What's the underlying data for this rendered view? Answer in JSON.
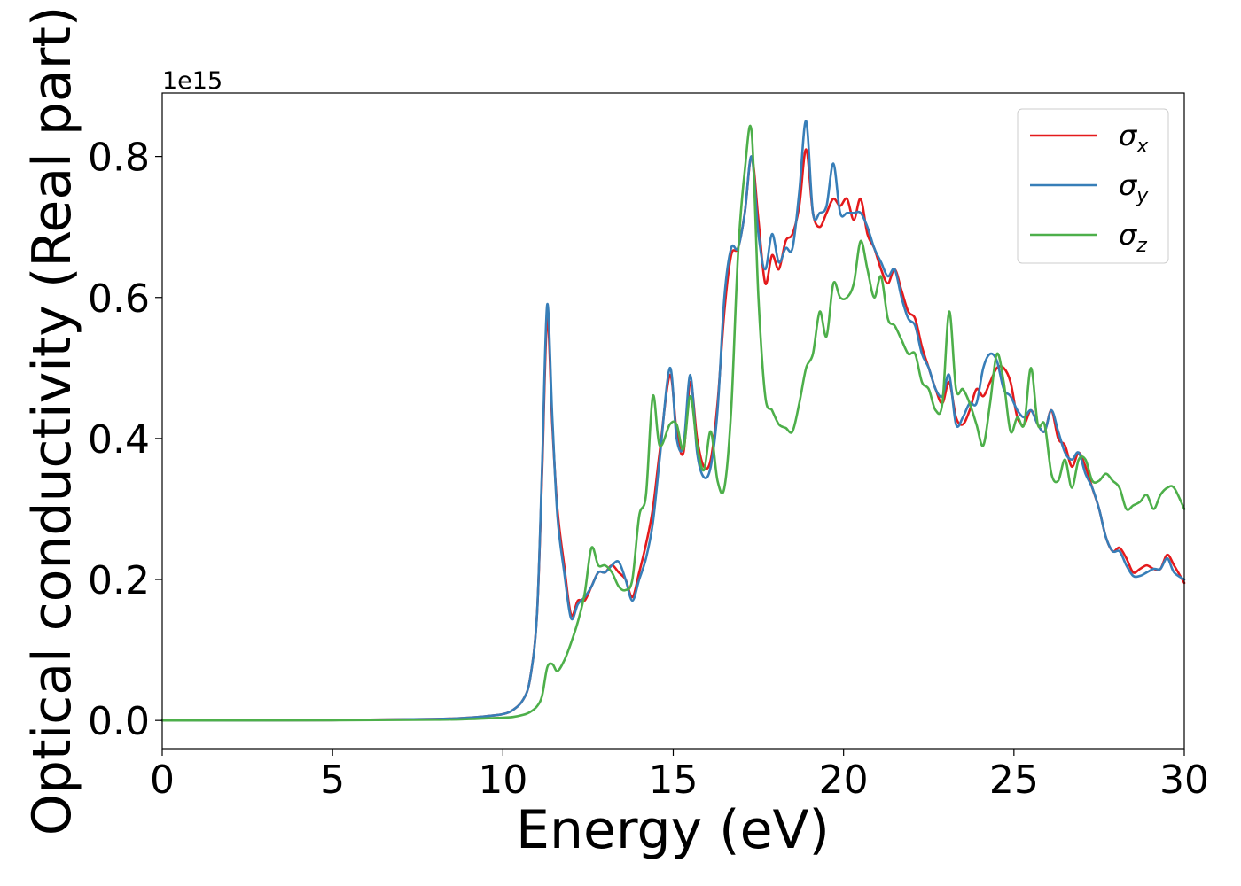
{
  "chart_data": {
    "type": "line",
    "xlabel": "Energy (eV)",
    "ylabel": "Optical conductivity (Real part)",
    "y_offset_label": "1e15",
    "xlim": [
      0,
      30
    ],
    "ylim": [
      -0.04,
      0.89
    ],
    "xticks": [
      0,
      5,
      10,
      15,
      20,
      25,
      30
    ],
    "yticks": [
      0.0,
      0.2,
      0.4,
      0.6,
      0.8
    ],
    "xtick_labels": [
      "0",
      "5",
      "10",
      "15",
      "20",
      "25",
      "30"
    ],
    "ytick_labels": [
      "0.0",
      "0.2",
      "0.4",
      "0.6",
      "0.8"
    ],
    "grid": false,
    "legend_position": "top-right",
    "series": [
      {
        "name": "σx",
        "symbol": "σ",
        "subscript": "x",
        "color": "#e41a1c",
        "x": [
          0,
          5,
          8,
          9,
          9.5,
          10,
          10.3,
          10.6,
          10.8,
          11.0,
          11.15,
          11.3,
          11.45,
          11.6,
          11.8,
          12.0,
          12.2,
          12.4,
          12.6,
          12.8,
          13.0,
          13.2,
          13.4,
          13.6,
          13.8,
          14.0,
          14.2,
          14.4,
          14.6,
          14.9,
          15.1,
          15.3,
          15.5,
          15.7,
          15.9,
          16.1,
          16.3,
          16.5,
          16.7,
          16.9,
          17.1,
          17.3,
          17.5,
          17.7,
          17.9,
          18.1,
          18.3,
          18.5,
          18.7,
          18.9,
          19.1,
          19.3,
          19.5,
          19.7,
          19.9,
          20.1,
          20.3,
          20.5,
          20.7,
          20.9,
          21.1,
          21.3,
          21.5,
          21.7,
          21.9,
          22.1,
          22.3,
          22.5,
          22.7,
          22.9,
          23.1,
          23.3,
          23.5,
          23.7,
          23.9,
          24.1,
          24.3,
          24.5,
          24.7,
          24.9,
          25.1,
          25.3,
          25.5,
          25.7,
          25.9,
          26.1,
          26.3,
          26.5,
          26.7,
          26.9,
          27.1,
          27.3,
          27.5,
          27.7,
          27.9,
          28.1,
          28.3,
          28.5,
          28.7,
          28.9,
          29.1,
          29.3,
          29.5,
          29.7,
          30.0
        ],
        "y": [
          0,
          0.0005,
          0.002,
          0.004,
          0.006,
          0.009,
          0.015,
          0.03,
          0.06,
          0.15,
          0.35,
          0.57,
          0.42,
          0.3,
          0.22,
          0.15,
          0.17,
          0.17,
          0.19,
          0.21,
          0.21,
          0.22,
          0.21,
          0.2,
          0.175,
          0.21,
          0.25,
          0.3,
          0.38,
          0.49,
          0.41,
          0.38,
          0.48,
          0.4,
          0.36,
          0.37,
          0.45,
          0.58,
          0.66,
          0.67,
          0.72,
          0.8,
          0.71,
          0.62,
          0.66,
          0.64,
          0.68,
          0.69,
          0.73,
          0.81,
          0.72,
          0.7,
          0.72,
          0.74,
          0.73,
          0.74,
          0.71,
          0.74,
          0.69,
          0.67,
          0.64,
          0.62,
          0.64,
          0.61,
          0.58,
          0.57,
          0.53,
          0.5,
          0.47,
          0.45,
          0.48,
          0.43,
          0.42,
          0.44,
          0.47,
          0.46,
          0.48,
          0.5,
          0.5,
          0.48,
          0.43,
          0.42,
          0.44,
          0.42,
          0.41,
          0.44,
          0.4,
          0.39,
          0.36,
          0.38,
          0.36,
          0.33,
          0.3,
          0.26,
          0.24,
          0.245,
          0.23,
          0.21,
          0.215,
          0.22,
          0.215,
          0.215,
          0.235,
          0.22,
          0.195
        ]
      },
      {
        "name": "σy",
        "symbol": "σ",
        "subscript": "y",
        "color": "#377eb8",
        "x": [
          0,
          5,
          8,
          9,
          9.5,
          10,
          10.3,
          10.6,
          10.8,
          11.0,
          11.15,
          11.3,
          11.45,
          11.6,
          11.8,
          12.0,
          12.2,
          12.4,
          12.6,
          12.8,
          13.0,
          13.2,
          13.4,
          13.6,
          13.8,
          14.0,
          14.2,
          14.4,
          14.6,
          14.9,
          15.1,
          15.3,
          15.5,
          15.7,
          15.9,
          16.1,
          16.3,
          16.5,
          16.7,
          16.9,
          17.1,
          17.3,
          17.5,
          17.7,
          17.9,
          18.1,
          18.3,
          18.5,
          18.7,
          18.9,
          19.1,
          19.3,
          19.5,
          19.7,
          19.9,
          20.1,
          20.3,
          20.5,
          20.7,
          20.9,
          21.1,
          21.3,
          21.5,
          21.7,
          21.9,
          22.1,
          22.3,
          22.5,
          22.7,
          22.9,
          23.1,
          23.3,
          23.5,
          23.7,
          23.9,
          24.1,
          24.3,
          24.5,
          24.7,
          24.9,
          25.1,
          25.3,
          25.5,
          25.7,
          25.9,
          26.1,
          26.3,
          26.5,
          26.7,
          26.9,
          27.1,
          27.3,
          27.5,
          27.7,
          27.9,
          28.1,
          28.3,
          28.5,
          28.7,
          28.9,
          29.1,
          29.3,
          29.5,
          29.7,
          30.0
        ],
        "y": [
          0,
          0.0005,
          0.002,
          0.004,
          0.006,
          0.009,
          0.015,
          0.03,
          0.06,
          0.15,
          0.36,
          0.59,
          0.43,
          0.29,
          0.21,
          0.145,
          0.165,
          0.175,
          0.19,
          0.21,
          0.21,
          0.22,
          0.225,
          0.2,
          0.17,
          0.2,
          0.23,
          0.28,
          0.37,
          0.5,
          0.4,
          0.39,
          0.49,
          0.38,
          0.345,
          0.36,
          0.44,
          0.6,
          0.67,
          0.67,
          0.72,
          0.8,
          0.69,
          0.64,
          0.69,
          0.65,
          0.67,
          0.67,
          0.75,
          0.85,
          0.72,
          0.72,
          0.73,
          0.79,
          0.72,
          0.72,
          0.72,
          0.72,
          0.7,
          0.67,
          0.65,
          0.63,
          0.64,
          0.6,
          0.57,
          0.56,
          0.52,
          0.5,
          0.47,
          0.46,
          0.49,
          0.42,
          0.43,
          0.45,
          0.45,
          0.5,
          0.52,
          0.51,
          0.47,
          0.46,
          0.44,
          0.43,
          0.44,
          0.42,
          0.41,
          0.44,
          0.41,
          0.38,
          0.37,
          0.38,
          0.35,
          0.33,
          0.3,
          0.26,
          0.24,
          0.24,
          0.22,
          0.205,
          0.205,
          0.21,
          0.215,
          0.215,
          0.23,
          0.21,
          0.2
        ]
      },
      {
        "name": "σz",
        "symbol": "σ",
        "subscript": "z",
        "color": "#4daf4a",
        "x": [
          0,
          5,
          8,
          9,
          9.5,
          10,
          10.3,
          10.6,
          10.8,
          11.0,
          11.15,
          11.3,
          11.45,
          11.6,
          11.8,
          12.0,
          12.2,
          12.4,
          12.6,
          12.8,
          13.0,
          13.2,
          13.4,
          13.6,
          13.8,
          14.0,
          14.2,
          14.4,
          14.6,
          14.9,
          15.1,
          15.3,
          15.5,
          15.7,
          15.9,
          16.1,
          16.3,
          16.5,
          16.7,
          16.9,
          17.1,
          17.3,
          17.5,
          17.7,
          17.9,
          18.1,
          18.3,
          18.5,
          18.7,
          18.9,
          19.1,
          19.3,
          19.5,
          19.7,
          19.9,
          20.1,
          20.3,
          20.5,
          20.7,
          20.9,
          21.1,
          21.3,
          21.5,
          21.7,
          21.9,
          22.1,
          22.3,
          22.5,
          22.7,
          22.9,
          23.1,
          23.3,
          23.5,
          23.7,
          23.9,
          24.1,
          24.3,
          24.5,
          24.7,
          24.9,
          25.1,
          25.3,
          25.5,
          25.7,
          25.9,
          26.1,
          26.3,
          26.5,
          26.7,
          26.9,
          27.1,
          27.3,
          27.5,
          27.7,
          27.9,
          28.1,
          28.3,
          28.5,
          28.7,
          28.9,
          29.1,
          29.3,
          29.5,
          29.7,
          30.0
        ],
        "y": [
          0,
          0.0003,
          0.001,
          0.002,
          0.003,
          0.004,
          0.005,
          0.008,
          0.012,
          0.02,
          0.035,
          0.075,
          0.08,
          0.07,
          0.085,
          0.11,
          0.14,
          0.18,
          0.245,
          0.22,
          0.22,
          0.21,
          0.19,
          0.185,
          0.2,
          0.29,
          0.32,
          0.46,
          0.39,
          0.42,
          0.42,
          0.385,
          0.46,
          0.39,
          0.355,
          0.41,
          0.34,
          0.33,
          0.44,
          0.66,
          0.78,
          0.835,
          0.6,
          0.46,
          0.44,
          0.42,
          0.415,
          0.41,
          0.45,
          0.5,
          0.52,
          0.58,
          0.545,
          0.62,
          0.6,
          0.6,
          0.62,
          0.68,
          0.64,
          0.6,
          0.63,
          0.57,
          0.56,
          0.54,
          0.52,
          0.52,
          0.48,
          0.47,
          0.44,
          0.45,
          0.58,
          0.47,
          0.47,
          0.45,
          0.42,
          0.39,
          0.45,
          0.52,
          0.48,
          0.41,
          0.43,
          0.42,
          0.5,
          0.42,
          0.42,
          0.35,
          0.34,
          0.37,
          0.33,
          0.37,
          0.37,
          0.34,
          0.34,
          0.35,
          0.34,
          0.33,
          0.3,
          0.305,
          0.31,
          0.32,
          0.3,
          0.32,
          0.33,
          0.33,
          0.3
        ]
      }
    ]
  }
}
